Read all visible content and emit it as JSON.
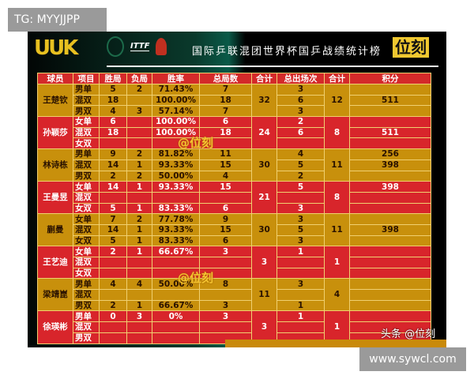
{
  "tg_label": "TG: MYYJJPP",
  "site_label": "www.sywcl.com",
  "header": {
    "logo": "UUK",
    "ittf": "ITTF",
    "title": "国际乒联混团世界杯国乒战绩统计榜",
    "brand": "位刻"
  },
  "watermark": "@位刻",
  "watermark_bottom": "头条 @位刻",
  "colors": {
    "gold": "#c8900c",
    "red": "#d8252b"
  },
  "table": {
    "columns": [
      "球员",
      "项目",
      "胜局",
      "负局",
      "胜率",
      "总局数",
      "合计",
      "总出场次",
      "合计",
      "积分"
    ],
    "players": [
      {
        "name": "王楚钦",
        "color": "gold",
        "games_sum": "32",
        "appear_sum": "12",
        "rows": [
          {
            "event": "男单",
            "w": "5",
            "l": "2",
            "rate": "71.43%",
            "total": "7",
            "apps": "3",
            "points": ""
          },
          {
            "event": "混双",
            "w": "18",
            "l": "",
            "rate": "100.00%",
            "total": "18",
            "apps": "6",
            "points": "511"
          },
          {
            "event": "男双",
            "w": "4",
            "l": "3",
            "rate": "57.14%",
            "total": "7",
            "apps": "3",
            "points": ""
          }
        ]
      },
      {
        "name": "孙颖莎",
        "color": "red",
        "games_sum": "24",
        "appear_sum": "8",
        "rows": [
          {
            "event": "女单",
            "w": "6",
            "l": "",
            "rate": "100.00%",
            "total": "6",
            "apps": "2",
            "points": ""
          },
          {
            "event": "混双",
            "w": "18",
            "l": "",
            "rate": "100.00%",
            "total": "18",
            "apps": "6",
            "points": "511"
          },
          {
            "event": "女双",
            "w": "",
            "l": "",
            "rate": "",
            "total": "",
            "apps": "",
            "points": ""
          }
        ]
      },
      {
        "name": "林诗栋",
        "color": "gold",
        "games_sum": "30",
        "appear_sum": "11",
        "rows": [
          {
            "event": "男单",
            "w": "9",
            "l": "2",
            "rate": "81.82%",
            "total": "11",
            "apps": "4",
            "points": "256"
          },
          {
            "event": "混双",
            "w": "14",
            "l": "1",
            "rate": "93.33%",
            "total": "15",
            "apps": "5",
            "points": "398"
          },
          {
            "event": "男双",
            "w": "2",
            "l": "2",
            "rate": "50.00%",
            "total": "4",
            "apps": "2",
            "points": ""
          }
        ]
      },
      {
        "name": "王曼昱",
        "color": "red",
        "games_sum": "21",
        "appear_sum": "8",
        "rows": [
          {
            "event": "女单",
            "w": "14",
            "l": "1",
            "rate": "93.33%",
            "total": "15",
            "apps": "5",
            "points": "398"
          },
          {
            "event": "混双",
            "w": "",
            "l": "",
            "rate": "",
            "total": "",
            "apps": "",
            "points": ""
          },
          {
            "event": "女双",
            "w": "5",
            "l": "1",
            "rate": "83.33%",
            "total": "6",
            "apps": "3",
            "points": ""
          }
        ]
      },
      {
        "name": "蒯曼",
        "color": "gold",
        "games_sum": "30",
        "appear_sum": "11",
        "rows": [
          {
            "event": "女单",
            "w": "7",
            "l": "2",
            "rate": "77.78%",
            "total": "9",
            "apps": "3",
            "points": ""
          },
          {
            "event": "混双",
            "w": "14",
            "l": "1",
            "rate": "93.33%",
            "total": "15",
            "apps": "5",
            "points": "398"
          },
          {
            "event": "女双",
            "w": "5",
            "l": "1",
            "rate": "83.33%",
            "total": "6",
            "apps": "3",
            "points": ""
          }
        ]
      },
      {
        "name": "王艺迪",
        "color": "red",
        "games_sum": "3",
        "appear_sum": "1",
        "rows": [
          {
            "event": "女单",
            "w": "2",
            "l": "1",
            "rate": "66.67%",
            "total": "3",
            "apps": "1",
            "points": ""
          },
          {
            "event": "混双",
            "w": "",
            "l": "",
            "rate": "",
            "total": "",
            "apps": "",
            "points": ""
          },
          {
            "event": "女双",
            "w": "",
            "l": "",
            "rate": "",
            "total": "",
            "apps": "",
            "points": ""
          }
        ]
      },
      {
        "name": "梁靖崑",
        "color": "gold",
        "games_sum": "11",
        "appear_sum": "4",
        "rows": [
          {
            "event": "男单",
            "w": "4",
            "l": "4",
            "rate": "50.00%",
            "total": "8",
            "apps": "3",
            "points": ""
          },
          {
            "event": "混双",
            "w": "",
            "l": "",
            "rate": "",
            "total": "",
            "apps": "",
            "points": ""
          },
          {
            "event": "男双",
            "w": "2",
            "l": "1",
            "rate": "66.67%",
            "total": "3",
            "apps": "1",
            "points": ""
          }
        ]
      },
      {
        "name": "徐瑛彬",
        "color": "red",
        "games_sum": "3",
        "appear_sum": "1",
        "rows": [
          {
            "event": "男单",
            "w": "0",
            "l": "3",
            "rate": "0%",
            "total": "3",
            "apps": "1",
            "points": ""
          },
          {
            "event": "混双",
            "w": "",
            "l": "",
            "rate": "",
            "total": "",
            "apps": "",
            "points": ""
          },
          {
            "event": "男双",
            "w": "",
            "l": "",
            "rate": "",
            "total": "",
            "apps": "",
            "points": ""
          }
        ]
      }
    ]
  }
}
